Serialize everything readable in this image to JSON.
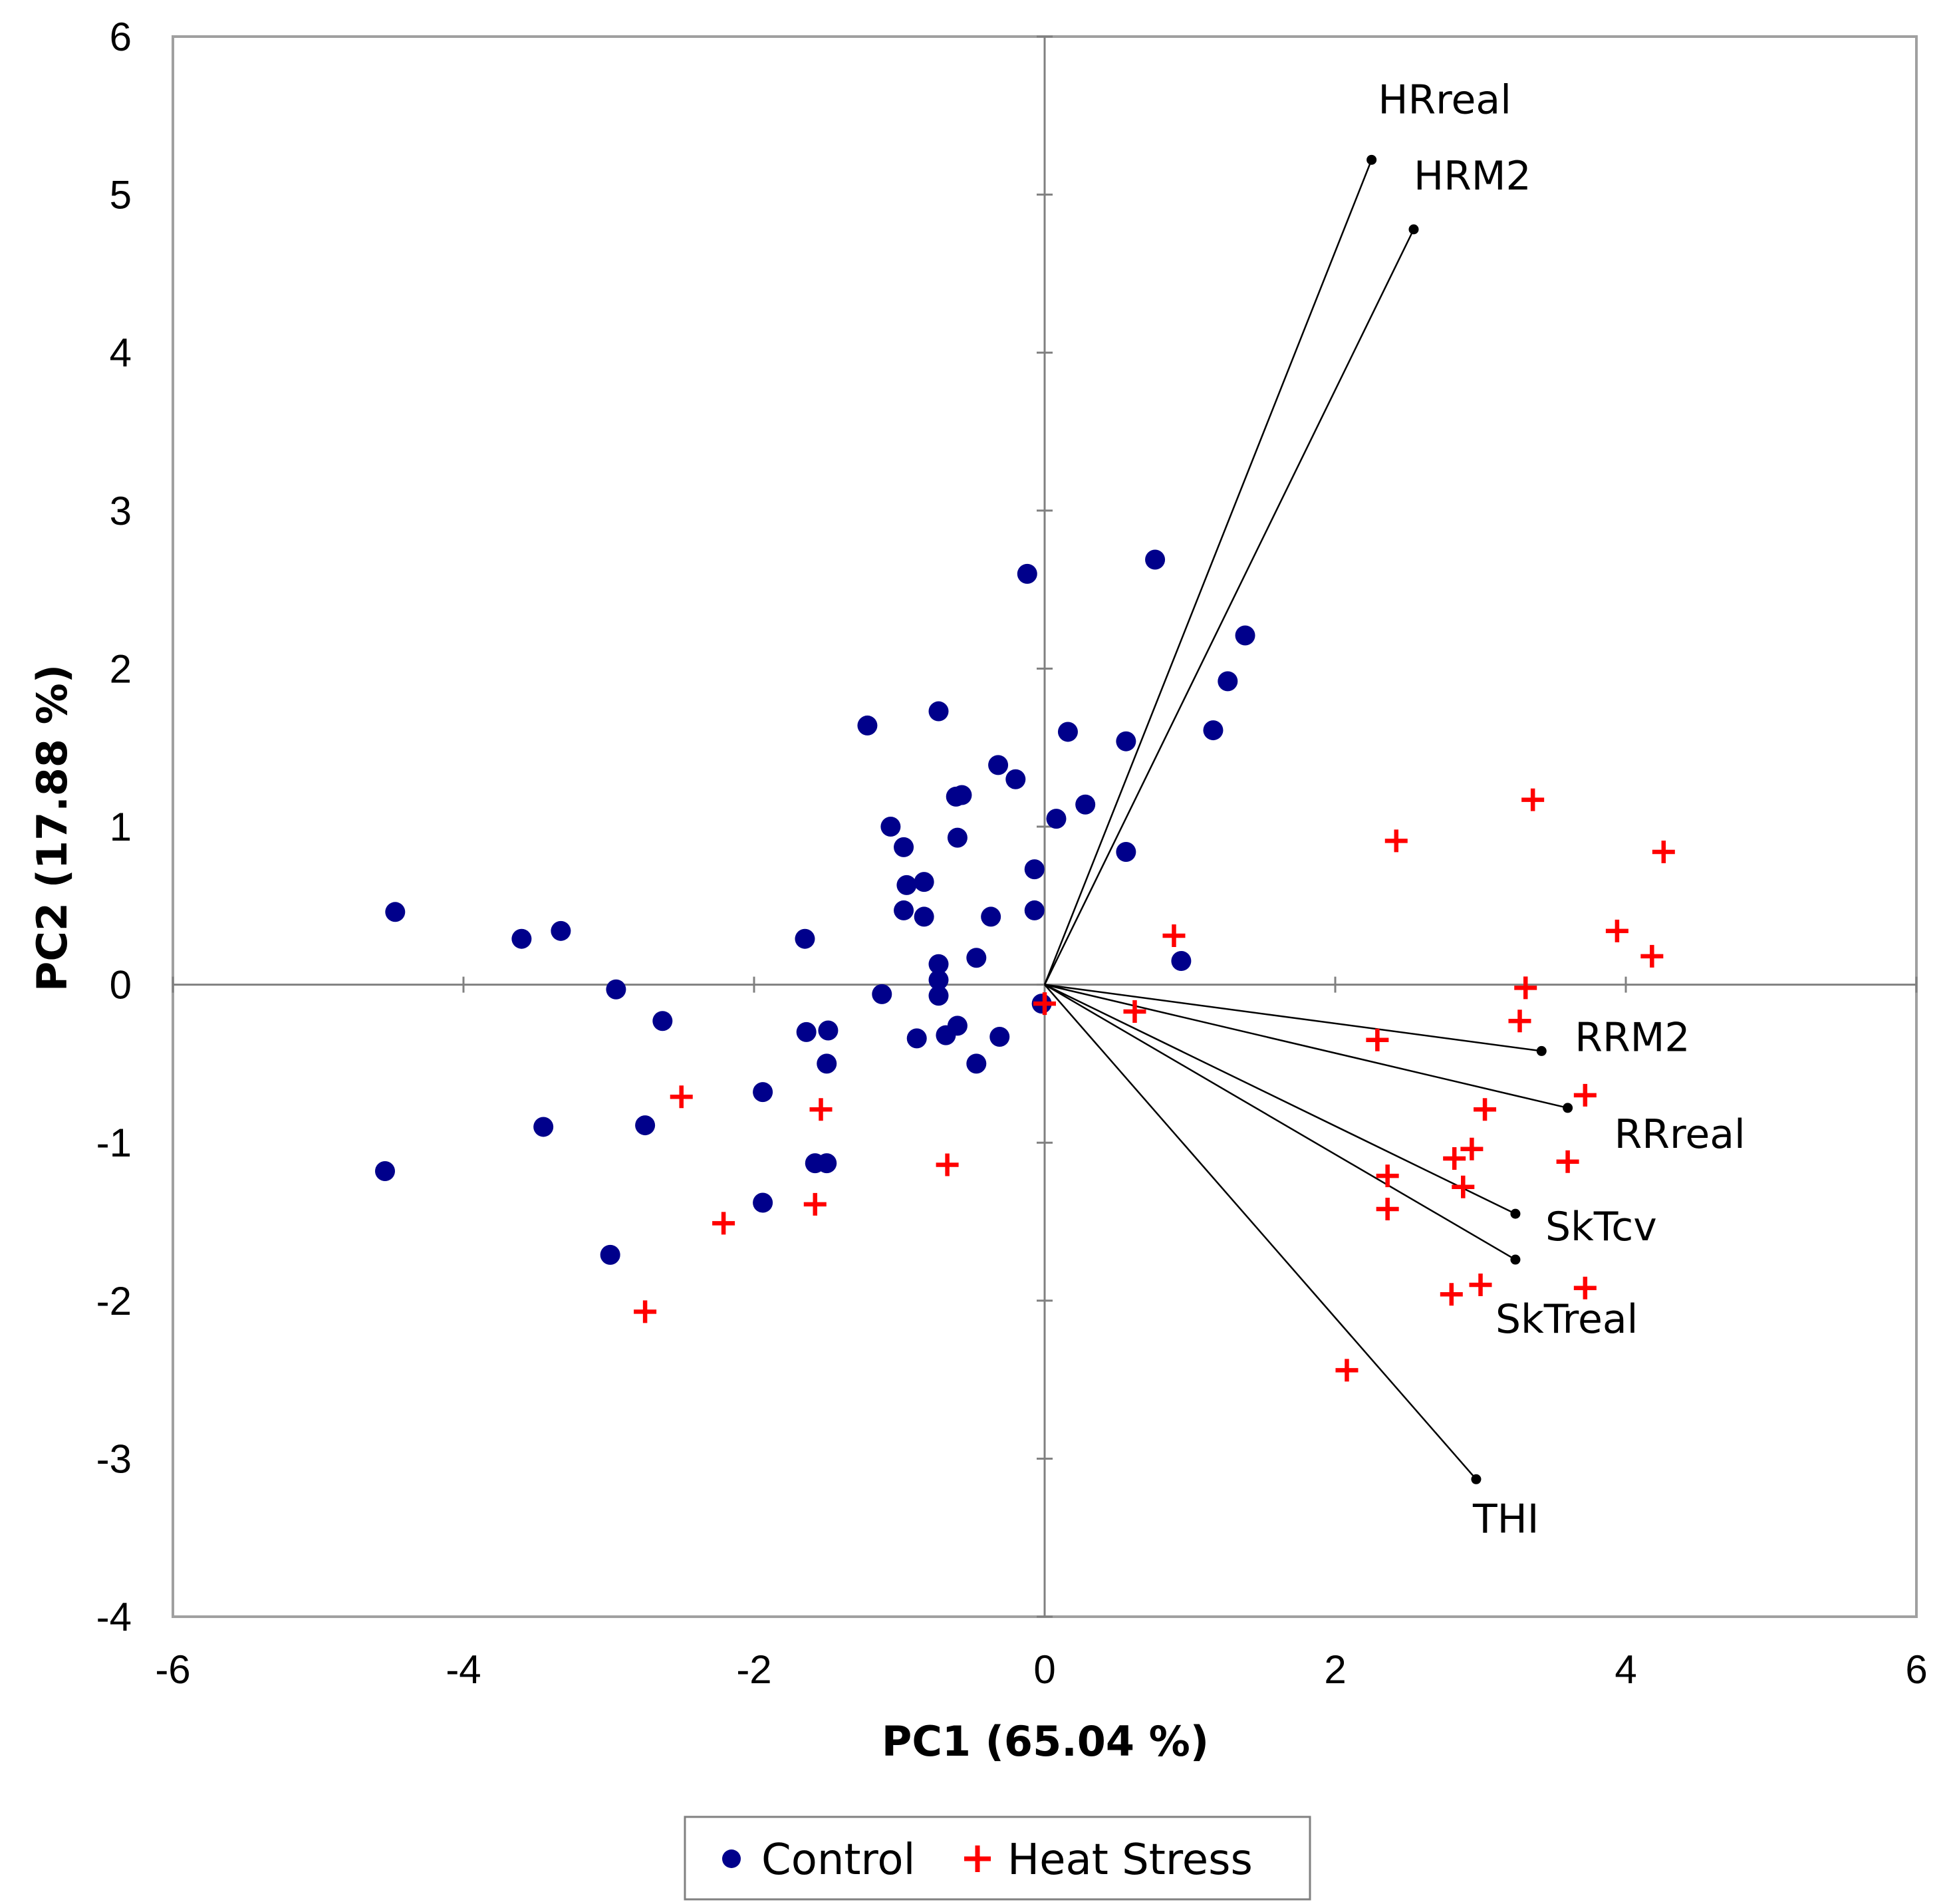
{
  "chart_data": {
    "type": "scatter",
    "xlabel": "PC1 (65.04 %)",
    "ylabel": "PC2 (17.88 %)",
    "xlim": [
      -6,
      6
    ],
    "ylim": [
      -4,
      6
    ],
    "xticks": [
      -6,
      -4,
      -2,
      0,
      2,
      4,
      6
    ],
    "yticks": [
      -4,
      -3,
      -2,
      -1,
      0,
      1,
      2,
      3,
      4,
      5,
      6
    ],
    "legend": {
      "position": "bottom-center",
      "entries": [
        "Control",
        "Heat Stress"
      ]
    },
    "colors": {
      "control": "#00008B",
      "heat": "#FF0000",
      "vector": "#000000",
      "axis": "#808080"
    },
    "series": [
      {
        "name": "Control",
        "marker": "circle",
        "points": [
          [
            -4.47,
            0.46
          ],
          [
            -3.6,
            0.29
          ],
          [
            -3.33,
            0.34
          ],
          [
            -2.95,
            -0.03
          ],
          [
            -2.63,
            -0.23
          ],
          [
            -4.54,
            -1.18
          ],
          [
            -3.45,
            -0.9
          ],
          [
            -2.75,
            -0.89
          ],
          [
            -2.99,
            -1.71
          ],
          [
            -1.94,
            -0.68
          ],
          [
            -1.94,
            -1.38
          ],
          [
            -1.65,
            0.29
          ],
          [
            -1.64,
            -0.3
          ],
          [
            -1.49,
            -0.29
          ],
          [
            -1.5,
            -0.5
          ],
          [
            -1.58,
            -1.13
          ],
          [
            -1.5,
            -1.13
          ],
          [
            -1.22,
            1.64
          ],
          [
            -1.06,
            1.0
          ],
          [
            -0.97,
            0.87
          ],
          [
            -0.95,
            0.63
          ],
          [
            -0.97,
            0.47
          ],
          [
            -0.83,
            0.65
          ],
          [
            -0.83,
            0.43
          ],
          [
            -0.73,
            1.73
          ],
          [
            -0.73,
            0.13
          ],
          [
            -0.73,
            0.03
          ],
          [
            -0.73,
            -0.07
          ],
          [
            -1.12,
            -0.06
          ],
          [
            -0.88,
            -0.34
          ],
          [
            -0.68,
            -0.32
          ],
          [
            -0.61,
            1.19
          ],
          [
            -0.57,
            1.2
          ],
          [
            -0.6,
            0.93
          ],
          [
            -0.6,
            -0.26
          ],
          [
            -0.47,
            0.17
          ],
          [
            -0.37,
            0.43
          ],
          [
            -0.32,
            1.39
          ],
          [
            -0.2,
            1.3
          ],
          [
            -0.47,
            -0.5
          ],
          [
            -0.31,
            -0.33
          ],
          [
            -0.12,
            2.6
          ],
          [
            -0.07,
            0.73
          ],
          [
            -0.07,
            0.47
          ],
          [
            0.08,
            1.05
          ],
          [
            0.16,
            1.6
          ],
          [
            0.28,
            1.14
          ],
          [
            0.56,
            1.54
          ],
          [
            0.56,
            0.84
          ],
          [
            0.76,
            2.69
          ],
          [
            1.16,
            1.61
          ],
          [
            1.26,
            1.92
          ],
          [
            1.38,
            2.21
          ],
          [
            0.94,
            0.15
          ],
          [
            -0.02,
            -0.12
          ]
        ]
      },
      {
        "name": "Heat Stress",
        "marker": "plus",
        "points": [
          [
            -2.5,
            -0.71
          ],
          [
            -2.75,
            -2.07
          ],
          [
            -2.21,
            -1.51
          ],
          [
            -1.54,
            -0.79
          ],
          [
            -1.58,
            -1.39
          ],
          [
            -0.67,
            -1.14
          ],
          [
            0.0,
            -0.12
          ],
          [
            0.62,
            -0.17
          ],
          [
            0.89,
            0.31
          ],
          [
            2.29,
            -0.35
          ],
          [
            2.42,
            0.91
          ],
          [
            2.36,
            -1.21
          ],
          [
            2.36,
            -1.42
          ],
          [
            2.08,
            -2.44
          ],
          [
            2.82,
            -1.1
          ],
          [
            2.94,
            -1.04
          ],
          [
            3.03,
            -0.79
          ],
          [
            2.88,
            -1.28
          ],
          [
            2.8,
            -1.96
          ],
          [
            3.0,
            -1.9
          ],
          [
            3.27,
            -0.23
          ],
          [
            3.31,
            -0.02
          ],
          [
            3.36,
            1.17
          ],
          [
            3.72,
            -0.7
          ],
          [
            3.6,
            -1.12
          ],
          [
            3.72,
            -1.92
          ],
          [
            3.94,
            0.34
          ],
          [
            4.18,
            0.18
          ],
          [
            4.26,
            0.84
          ]
        ]
      }
    ],
    "vectors": [
      {
        "label": "HRreal",
        "x": 2.25,
        "y": 5.22
      },
      {
        "label": "HRM2",
        "x": 2.54,
        "y": 4.78
      },
      {
        "label": "RRM2",
        "x": 3.42,
        "y": -0.42
      },
      {
        "label": "RRreal",
        "x": 3.6,
        "y": -0.78
      },
      {
        "label": "SkTcv",
        "x": 3.24,
        "y": -1.45
      },
      {
        "label": "SkTreal",
        "x": 3.24,
        "y": -1.74
      },
      {
        "label": "THI",
        "x": 2.97,
        "y": -3.13
      }
    ]
  }
}
